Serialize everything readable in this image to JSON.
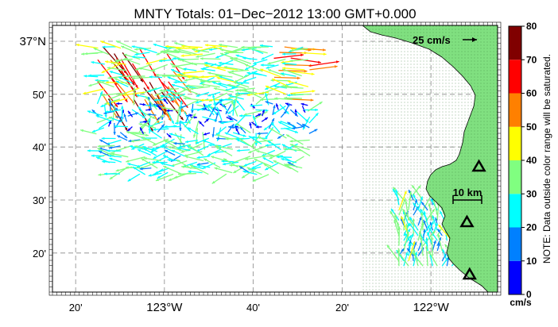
{
  "title": "MNTY Totals: 01−Dec−2012 13:00 GMT+0.000",
  "axes": {
    "x_ticks": [
      {
        "lon": -123.333,
        "label": "20'"
      },
      {
        "lon": -123.0,
        "label": "123°W"
      },
      {
        "lon": -122.667,
        "label": "40'"
      },
      {
        "lon": -122.333,
        "label": "20'"
      },
      {
        "lon": -122.0,
        "label": "122°W"
      }
    ],
    "y_ticks": [
      {
        "lat": 37.0,
        "label": "37°N"
      },
      {
        "lat": 36.833,
        "label": "50'"
      },
      {
        "lat": 36.667,
        "label": "40'"
      },
      {
        "lat": 36.5,
        "label": "30'"
      },
      {
        "lat": 36.333,
        "label": "20'"
      }
    ],
    "lon_range": [
      -123.42,
      -121.75
    ],
    "lat_range": [
      36.21,
      37.05
    ],
    "grid": true
  },
  "reference_vector": {
    "label": "25 cm/s",
    "speed": 25
  },
  "scale_bar": {
    "label": "10 km",
    "length_km": 10
  },
  "colorbar": {
    "ticks": [
      "0",
      "10",
      "20",
      "30",
      "40",
      "50",
      "60",
      "70",
      "80"
    ],
    "unit": "cm/s",
    "note": "NOTE: Data outside color range will be saturated.",
    "colors": [
      "#0000ff",
      "#0080ff",
      "#00ffff",
      "#80ff80",
      "#ffff00",
      "#ff8000",
      "#ff0000",
      "#800000"
    ]
  },
  "land_color": "#80e080",
  "stations": [
    {
      "lon": -121.82,
      "lat": 36.605
    },
    {
      "lon": -121.865,
      "lat": 36.43
    },
    {
      "lon": -121.855,
      "lat": 36.265
    }
  ],
  "vector_fields": [
    {
      "region": "offshore",
      "lon_range": [
        -123.25,
        -122.45
      ],
      "lat_range": [
        36.58,
        36.98
      ]
    },
    {
      "region": "coastal",
      "lon_range": [
        -122.12,
        -121.87
      ],
      "lat_range": [
        36.28,
        36.5
      ]
    }
  ]
}
